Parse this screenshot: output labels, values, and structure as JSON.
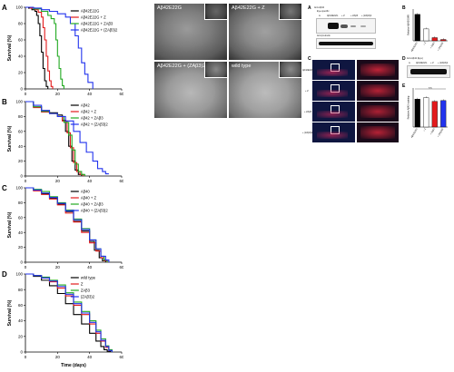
{
  "figure": {
    "micrographs": [
      {
        "label": "Aβ42E22G"
      },
      {
        "label": "Aβ42E22G + Z"
      },
      {
        "label": "Aβ42E22G + (ZAβ3)2"
      },
      {
        "label": "wild type"
      }
    ],
    "right_panels": {
      "blot_a_title": "Anti-Aβ42",
      "blot_a_sub": "Eye-specific",
      "blot_a_cols": [
        "w",
        "Aβ42E22G",
        "+ Z",
        "+ ZAβ3",
        "+ (ZAβ3)2"
      ],
      "blot_a_tubulin": "Anti-β-tubulin",
      "blot_d_title": "Anti-Aβ42 (Eye)",
      "blot_d_cols": [
        "w",
        "Aβ42E22G",
        "+ Z",
        "+ (ZAβ3)2"
      ],
      "c_rows": [
        "Aβ42E22G",
        "+ Z",
        "+ ZAβ3",
        "+ (ZAβ3)2"
      ],
      "b_ylabel": "Relative Aβ42/GMR",
      "e_ylabel": "Relative Aβ42 staining",
      "ns": "n.s."
    }
  },
  "chart_data": [
    {
      "type": "line",
      "panel": "A",
      "xlabel": "",
      "ylabel": "Survival (%)",
      "xlim": [
        0,
        60
      ],
      "ylim": [
        0,
        100
      ],
      "xticks": [
        0,
        20,
        40,
        60
      ],
      "yticks": [
        0,
        20,
        40,
        60,
        80,
        100
      ],
      "legend_position": "top-right",
      "series": [
        {
          "name": "Aβ42E22G",
          "color": "#000000",
          "x": [
            0,
            2,
            4,
            6,
            7,
            8,
            9,
            10,
            11,
            12,
            13,
            14
          ],
          "y": [
            100,
            99,
            97,
            95,
            90,
            80,
            65,
            45,
            25,
            10,
            3,
            0
          ]
        },
        {
          "name": "Aβ42E22G + Z",
          "color": "#e31a1c",
          "x": [
            0,
            3,
            6,
            8,
            10,
            11,
            12,
            13,
            14,
            15,
            16,
            17
          ],
          "y": [
            100,
            99,
            97,
            94,
            88,
            75,
            60,
            40,
            22,
            10,
            3,
            0
          ]
        },
        {
          "name": "Aβ42E22G + ZAβ3",
          "color": "#22aa22",
          "x": [
            0,
            5,
            10,
            14,
            16,
            18,
            19,
            20,
            21,
            22,
            23,
            24
          ],
          "y": [
            100,
            98,
            95,
            90,
            86,
            80,
            60,
            40,
            25,
            12,
            4,
            0
          ]
        },
        {
          "name": "Aβ42E22G + (ZAβ3)2",
          "color": "#2233ee",
          "x": [
            0,
            5,
            10,
            15,
            20,
            25,
            28,
            31,
            33,
            35,
            37,
            39,
            42
          ],
          "y": [
            100,
            99,
            97,
            95,
            92,
            88,
            80,
            65,
            50,
            32,
            18,
            8,
            0
          ]
        }
      ]
    },
    {
      "type": "line",
      "panel": "B",
      "xlabel": "",
      "ylabel": "Survival (%)",
      "xlim": [
        0,
        60
      ],
      "ylim": [
        0,
        100
      ],
      "xticks": [
        0,
        20,
        40,
        60
      ],
      "yticks": [
        0,
        20,
        40,
        60,
        80,
        100
      ],
      "legend_position": "top-right",
      "series": [
        {
          "name": "Aβ42",
          "color": "#000000",
          "x": [
            0,
            5,
            10,
            15,
            20,
            23,
            25,
            27,
            29,
            31,
            33,
            35
          ],
          "y": [
            100,
            93,
            88,
            85,
            82,
            75,
            60,
            40,
            20,
            8,
            2,
            0
          ]
        },
        {
          "name": "Aβ42 + Z",
          "color": "#e31a1c",
          "x": [
            0,
            5,
            10,
            15,
            20,
            23,
            26,
            28,
            30,
            32,
            34,
            36
          ],
          "y": [
            100,
            92,
            86,
            84,
            80,
            74,
            58,
            38,
            18,
            6,
            2,
            0
          ]
        },
        {
          "name": "Aβ42 + ZAβ3",
          "color": "#22aa22",
          "x": [
            0,
            5,
            10,
            15,
            20,
            24,
            27,
            29,
            31,
            33,
            35,
            37
          ],
          "y": [
            100,
            93,
            87,
            84,
            80,
            72,
            55,
            35,
            16,
            6,
            2,
            0
          ]
        },
        {
          "name": "Aβ42 + (ZAβ3)2",
          "color": "#2233ee",
          "x": [
            0,
            5,
            10,
            15,
            20,
            25,
            30,
            34,
            38,
            42,
            45,
            48,
            50,
            52
          ],
          "y": [
            100,
            95,
            88,
            84,
            80,
            74,
            60,
            45,
            32,
            20,
            10,
            6,
            3,
            3
          ]
        }
      ]
    },
    {
      "type": "line",
      "panel": "C",
      "xlabel": "",
      "ylabel": "Survival (%)",
      "xlim": [
        0,
        60
      ],
      "ylim": [
        0,
        100
      ],
      "xticks": [
        0,
        20,
        40,
        60
      ],
      "yticks": [
        0,
        20,
        40,
        60,
        80,
        100
      ],
      "legend_position": "top-right",
      "series": [
        {
          "name": "Aβ40",
          "color": "#000000",
          "x": [
            0,
            5,
            10,
            15,
            20,
            25,
            30,
            35,
            40,
            43,
            46,
            48,
            50
          ],
          "y": [
            100,
            97,
            92,
            86,
            78,
            68,
            55,
            42,
            28,
            16,
            6,
            2,
            0
          ]
        },
        {
          "name": "Aβ40 + Z",
          "color": "#e31a1c",
          "x": [
            0,
            5,
            10,
            15,
            20,
            25,
            30,
            35,
            40,
            44,
            47,
            49,
            51
          ],
          "y": [
            100,
            96,
            91,
            85,
            77,
            66,
            54,
            40,
            26,
            15,
            6,
            2,
            0
          ]
        },
        {
          "name": "Aβ40 + ZAβ3",
          "color": "#22aa22",
          "x": [
            0,
            5,
            10,
            15,
            20,
            25,
            30,
            35,
            40,
            44,
            47,
            49,
            51
          ],
          "y": [
            100,
            98,
            95,
            88,
            80,
            70,
            58,
            45,
            30,
            18,
            8,
            3,
            0
          ]
        },
        {
          "name": "Aβ40 + (ZAβ3)2",
          "color": "#2233ee",
          "x": [
            0,
            5,
            10,
            15,
            20,
            25,
            30,
            35,
            40,
            44,
            47,
            50,
            52
          ],
          "y": [
            100,
            97,
            93,
            87,
            79,
            69,
            57,
            44,
            30,
            18,
            8,
            3,
            0
          ]
        }
      ]
    },
    {
      "type": "line",
      "panel": "D",
      "xlabel": "Time (days)",
      "ylabel": "Survival (%)",
      "xlim": [
        0,
        60
      ],
      "ylim": [
        0,
        100
      ],
      "xticks": [
        0,
        20,
        40,
        60
      ],
      "yticks": [
        0,
        20,
        40,
        60,
        80,
        100
      ],
      "legend_position": "top-right",
      "series": [
        {
          "name": "wild type",
          "color": "#000000",
          "x": [
            0,
            5,
            10,
            15,
            20,
            25,
            30,
            35,
            40,
            44,
            47,
            49,
            51,
            53
          ],
          "y": [
            100,
            97,
            92,
            85,
            75,
            62,
            48,
            36,
            24,
            14,
            7,
            3,
            1,
            0
          ]
        },
        {
          "name": "Z",
          "color": "#e31a1c",
          "x": [
            0,
            5,
            10,
            15,
            20,
            25,
            30,
            35,
            40,
            44,
            47,
            50,
            52,
            54
          ],
          "y": [
            100,
            98,
            95,
            90,
            82,
            72,
            60,
            48,
            36,
            24,
            14,
            6,
            2,
            0
          ]
        },
        {
          "name": "ZAβ3",
          "color": "#22aa22",
          "x": [
            0,
            5,
            10,
            15,
            20,
            25,
            30,
            35,
            40,
            44,
            47,
            50,
            52,
            54
          ],
          "y": [
            100,
            98,
            96,
            92,
            86,
            76,
            64,
            52,
            40,
            28,
            17,
            8,
            3,
            0
          ]
        },
        {
          "name": "(ZAβ3)2",
          "color": "#2233ee",
          "x": [
            0,
            5,
            10,
            15,
            20,
            25,
            30,
            35,
            40,
            44,
            47,
            50,
            52,
            54
          ],
          "y": [
            100,
            98,
            95,
            91,
            84,
            74,
            62,
            50,
            38,
            26,
            15,
            7,
            2,
            0
          ]
        }
      ]
    },
    {
      "type": "bar",
      "panel": "B-right",
      "categories": [
        "Aβ42E22G",
        "+ Z",
        "+ ZAβ3",
        "+ (ZAβ3)2"
      ],
      "values": [
        1.0,
        0.45,
        0.12,
        0.05
      ],
      "colors": [
        "#000000",
        "#ffffff",
        "#e31a1c",
        "#e31a1c"
      ],
      "ylim": [
        0,
        1.2
      ],
      "ylabel": "Relative Aβ42/GMR"
    },
    {
      "type": "bar",
      "panel": "E",
      "categories": [
        "Aβ42E22G",
        "+ Z",
        "+ ZAβ3",
        "+ (ZAβ3)2"
      ],
      "values": [
        1.0,
        1.05,
        0.92,
        0.95
      ],
      "colors": [
        "#000000",
        "#ffffff",
        "#e31a1c",
        "#2233ee"
      ],
      "ylim": [
        0,
        1.4
      ],
      "ylabel": "Relative Aβ42 staining"
    }
  ]
}
